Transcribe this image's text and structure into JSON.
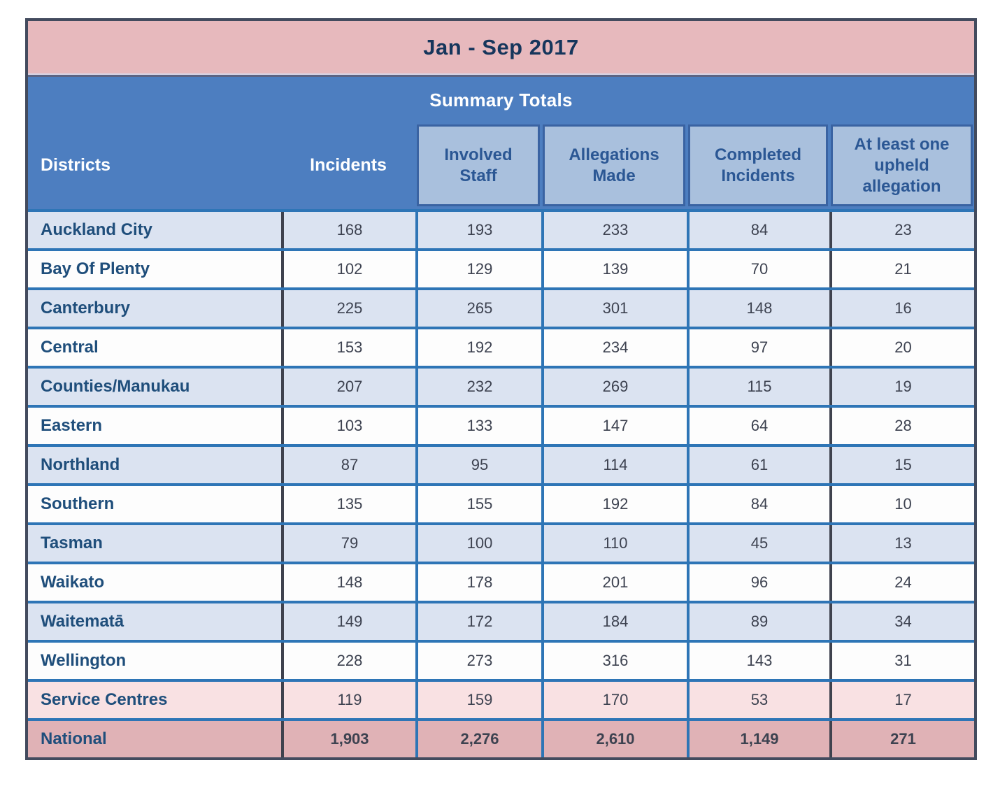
{
  "title": "Jan - Sep 2017",
  "summary_title": "Summary Totals",
  "columns": [
    {
      "label": "Districts"
    },
    {
      "label": "Incidents"
    },
    {
      "label": "Involved Staff"
    },
    {
      "label": "Allegations Made"
    },
    {
      "label": "Completed Incidents"
    },
    {
      "label": "At least one upheld allegation"
    }
  ],
  "rows": [
    {
      "district": "Auckland City",
      "values": [
        "168",
        "193",
        "233",
        "84",
        "23"
      ],
      "variant": "alt"
    },
    {
      "district": "Bay Of Plenty",
      "values": [
        "102",
        "129",
        "139",
        "70",
        "21"
      ],
      "variant": "plain"
    },
    {
      "district": "Canterbury",
      "values": [
        "225",
        "265",
        "301",
        "148",
        "16"
      ],
      "variant": "alt"
    },
    {
      "district": "Central",
      "values": [
        "153",
        "192",
        "234",
        "97",
        "20"
      ],
      "variant": "plain"
    },
    {
      "district": "Counties/Manukau",
      "values": [
        "207",
        "232",
        "269",
        "115",
        "19"
      ],
      "variant": "alt"
    },
    {
      "district": "Eastern",
      "values": [
        "103",
        "133",
        "147",
        "64",
        "28"
      ],
      "variant": "plain"
    },
    {
      "district": "Northland",
      "values": [
        "87",
        "95",
        "114",
        "61",
        "15"
      ],
      "variant": "alt"
    },
    {
      "district": "Southern",
      "values": [
        "135",
        "155",
        "192",
        "84",
        "10"
      ],
      "variant": "plain"
    },
    {
      "district": "Tasman",
      "values": [
        "79",
        "100",
        "110",
        "45",
        "13"
      ],
      "variant": "alt"
    },
    {
      "district": "Waikato",
      "values": [
        "148",
        "178",
        "201",
        "96",
        "24"
      ],
      "variant": "plain"
    },
    {
      "district": "Waitematā",
      "values": [
        "149",
        "172",
        "184",
        "89",
        "34"
      ],
      "variant": "alt"
    },
    {
      "district": "Wellington",
      "values": [
        "228",
        "273",
        "316",
        "143",
        "31"
      ],
      "variant": "plain"
    },
    {
      "district": "Service Centres",
      "values": [
        "119",
        "159",
        "170",
        "53",
        "17"
      ],
      "variant": "service"
    },
    {
      "district": "National",
      "values": [
        "1,903",
        "2,276",
        "2,610",
        "1,149",
        "271"
      ],
      "variant": "national"
    }
  ],
  "colors": {
    "pink_band": "#e7b9bd",
    "blue_header": "#4d7ec0",
    "subheader_box": "#a9c0dd",
    "subheader_border": "#3a63a2",
    "row_alt": "#dbe3f1",
    "row_plain": "#fdfdfd",
    "row_service": "#f9e1e3",
    "row_national": "#e0b2b6",
    "horizontal_border": "#2e75b6",
    "vertical_border_dark": "#3f424e",
    "outer_border": "#434b5e",
    "title_text": "#16365c",
    "header_text_white": "#ffffff",
    "subheader_text": "#2b5794",
    "district_text": "#1f4e7b",
    "value_text": "#3d4250"
  }
}
